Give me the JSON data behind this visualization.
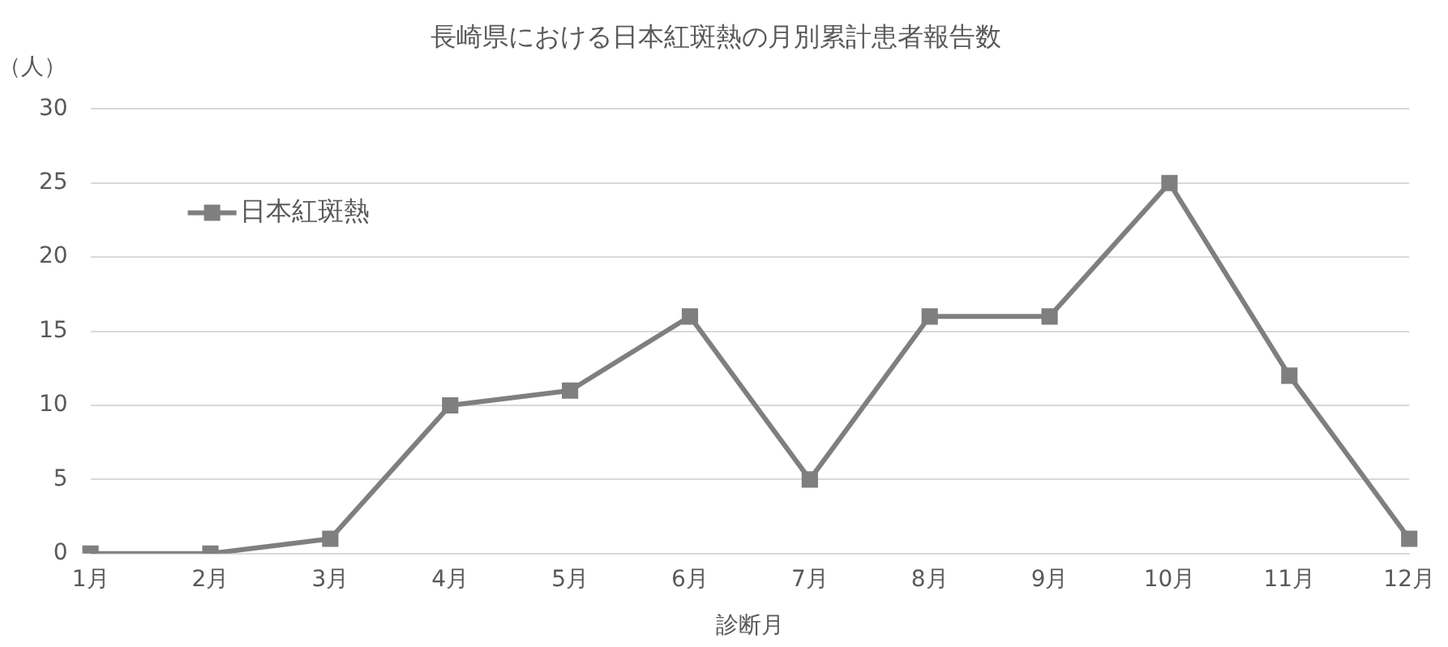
{
  "chart_data": {
    "type": "line",
    "title": "長崎県における日本紅斑熱の月別累計患者報告数",
    "xlabel": "診断月",
    "ylabel": "（人）",
    "categories": [
      "1月",
      "2月",
      "3月",
      "4月",
      "5月",
      "6月",
      "7月",
      "8月",
      "9月",
      "10月",
      "11月",
      "12月"
    ],
    "series": [
      {
        "name": "日本紅斑熱",
        "color": "#7f7f7f",
        "values": [
          0,
          0,
          1,
          10,
          11,
          16,
          5,
          16,
          16,
          25,
          12,
          1
        ]
      }
    ],
    "ylim": [
      0,
      30
    ],
    "yticks": [
      0,
      5,
      10,
      15,
      20,
      25,
      30
    ],
    "grid": "y",
    "legend": "top left",
    "marker": "square",
    "line_style": "solid"
  }
}
